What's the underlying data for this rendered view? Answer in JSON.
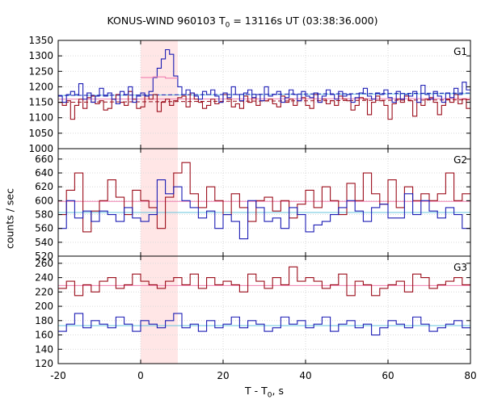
{
  "chart_data": {
    "type": "line",
    "title": {
      "prefix": "KONUS-WIND 960103 T",
      "subscript": "0",
      "suffix": " = 13116s UT (03:38:36.000)"
    },
    "xlabel": {
      "prefix": "T - T",
      "subscript": "0",
      "suffix": ", s"
    },
    "ylabel": "counts / sec",
    "xlim": [
      -20,
      80
    ],
    "xticks": [
      -20,
      0,
      20,
      40,
      60,
      80
    ],
    "highlight_interval": [
      0,
      9
    ],
    "colors": {
      "background": "#d9d9d9",
      "highlight": "#ffe6e6",
      "dark_red": "#9b0d1b",
      "blue": "#1c1cb4",
      "light_blue": "#66c6de",
      "pink": "#f080b0",
      "axis": "#000000"
    },
    "panels": [
      {
        "name": "G1",
        "ylim": [
          1000,
          1350
        ],
        "yticks": [
          1000,
          1050,
          1100,
          1150,
          1200,
          1250,
          1300,
          1350
        ],
        "series": [
          {
            "color": "dark_red",
            "step_width": 1.0,
            "x0": -20,
            "values": [
              1150,
              1140,
              1155,
              1095,
              1140,
              1160,
              1130,
              1165,
              1170,
              1145,
              1155,
              1125,
              1130,
              1160,
              1175,
              1150,
              1140,
              1185,
              1160,
              1130,
              1135,
              1170,
              1160,
              1175,
              1120,
              1150,
              1160,
              1140,
              1155,
              1165,
              1170,
              1135,
              1180,
              1160,
              1150,
              1130,
              1140,
              1160,
              1145,
              1150,
              1175,
              1160,
              1135,
              1145,
              1130,
              1170,
              1150,
              1165,
              1140,
              1155,
              1155,
              1160,
              1145,
              1135,
              1170,
              1150,
              1160,
              1140,
              1155,
              1165,
              1140,
              1130,
              1175,
              1150,
              1160,
              1145,
              1155,
              1140,
              1170,
              1160,
              1155,
              1125,
              1140,
              1165,
              1160,
              1110,
              1150,
              1170,
              1155,
              1140,
              1095,
              1145,
              1160,
              1150,
              1170,
              1155,
              1105,
              1150,
              1140,
              1160,
              1165,
              1150,
              1110,
              1140,
              1160,
              1150,
              1175,
              1145,
              1160,
              1130
            ]
          },
          {
            "color": "blue",
            "step_width": 1.0,
            "x0": -20,
            "values": [
              1170,
              1150,
              1175,
              1185,
              1175,
              1210,
              1160,
              1180,
              1150,
              1170,
              1195,
              1170,
              1180,
              1160,
              1145,
              1185,
              1175,
              1200,
              1150,
              1170,
              1180,
              1170,
              1185,
              1230,
              1260,
              1290,
              1320,
              1305,
              1235,
              1200,
              1175,
              1190,
              1180,
              1170,
              1160,
              1185,
              1175,
              1190,
              1170,
              1150,
              1180,
              1165,
              1200,
              1175,
              1155,
              1180,
              1190,
              1165,
              1175,
              1155,
              1200,
              1170,
              1175,
              1185,
              1150,
              1165,
              1190,
              1175,
              1155,
              1185,
              1170,
              1165,
              1180,
              1150,
              1170,
              1190,
              1175,
              1160,
              1185,
              1170,
              1175,
              1150,
              1165,
              1180,
              1195,
              1170,
              1160,
              1180,
              1175,
              1190,
              1165,
              1150,
              1185,
              1160,
              1175,
              1170,
              1185,
              1150,
              1205,
              1175,
              1160,
              1185,
              1170,
              1150,
              1180,
              1165,
              1195,
              1175,
              1215,
              1190
            ]
          },
          {
            "color": "pink",
            "step_width": 3.0,
            "x0": 0,
            "values": [
              1230,
              1232,
              1228
            ]
          }
        ],
        "bg_levels": [
          {
            "color": "light_blue",
            "style": "solid",
            "y0": 1172,
            "y1": 1178
          },
          {
            "color": "blue",
            "style": "dashed",
            "y0": 1172,
            "y1": 1180
          },
          {
            "color": "dark_red",
            "style": "dashed",
            "y0": 1150,
            "y1": 1158
          },
          {
            "color": "pink",
            "style": "solid",
            "y0": 1160,
            "y1": 1162
          }
        ]
      },
      {
        "name": "G2",
        "ylim": [
          520,
          675
        ],
        "yticks": [
          520,
          540,
          560,
          580,
          600,
          620,
          640,
          660
        ],
        "series": [
          {
            "color": "dark_red",
            "step_width": 2.0,
            "x0": -20,
            "values": [
              580,
              615,
              640,
              555,
              585,
              600,
              630,
              605,
              580,
              615,
              600,
              590,
              560,
              605,
              640,
              655,
              610,
              590,
              620,
              600,
              580,
              610,
              590,
              570,
              600,
              605,
              585,
              600,
              575,
              595,
              615,
              590,
              620,
              600,
              580,
              625,
              600,
              640,
              610,
              595,
              630,
              590,
              620,
              600,
              610,
              600,
              610,
              640,
              600,
              610
            ]
          },
          {
            "color": "blue",
            "step_width": 2.0,
            "x0": -20,
            "values": [
              560,
              600,
              575,
              585,
              570,
              585,
              580,
              570,
              590,
              575,
              570,
              580,
              630,
              610,
              620,
              600,
              590,
              575,
              585,
              560,
              580,
              570,
              545,
              600,
              590,
              570,
              575,
              560,
              590,
              580,
              555,
              565,
              570,
              580,
              590,
              600,
              585,
              570,
              590,
              595,
              575,
              575,
              610,
              580,
              600,
              585,
              575,
              590,
              580,
              560
            ]
          }
        ],
        "bg_levels": [
          {
            "color": "pink",
            "style": "solid",
            "y0": 599,
            "y1": 599
          },
          {
            "color": "light_blue",
            "style": "solid",
            "y0": 583,
            "y1": 583
          }
        ]
      },
      {
        "name": "G3",
        "ylim": [
          120,
          270
        ],
        "yticks": [
          120,
          140,
          160,
          180,
          200,
          220,
          240,
          260
        ],
        "series": [
          {
            "color": "dark_red",
            "step_width": 2.0,
            "x0": -20,
            "values": [
              225,
              235,
              215,
              230,
              220,
              235,
              240,
              225,
              230,
              245,
              235,
              230,
              225,
              235,
              240,
              230,
              245,
              225,
              240,
              230,
              235,
              230,
              220,
              245,
              235,
              225,
              240,
              230,
              255,
              235,
              240,
              235,
              225,
              230,
              245,
              215,
              235,
              230,
              215,
              225,
              230,
              235,
              220,
              245,
              240,
              225,
              230,
              235,
              240,
              230
            ]
          },
          {
            "color": "blue",
            "step_width": 2.0,
            "x0": -20,
            "values": [
              165,
              175,
              190,
              170,
              180,
              175,
              170,
              185,
              175,
              165,
              180,
              175,
              170,
              180,
              190,
              170,
              175,
              165,
              180,
              170,
              175,
              185,
              170,
              180,
              175,
              165,
              170,
              185,
              175,
              180,
              170,
              175,
              185,
              165,
              175,
              180,
              170,
              175,
              160,
              170,
              180,
              175,
              170,
              185,
              175,
              165,
              170,
              175,
              180,
              170
            ]
          }
        ],
        "bg_levels": [
          {
            "color": "pink",
            "style": "solid",
            "y0": 229,
            "y1": 229
          },
          {
            "color": "light_blue",
            "style": "solid",
            "y0": 173,
            "y1": 173
          }
        ]
      }
    ]
  }
}
